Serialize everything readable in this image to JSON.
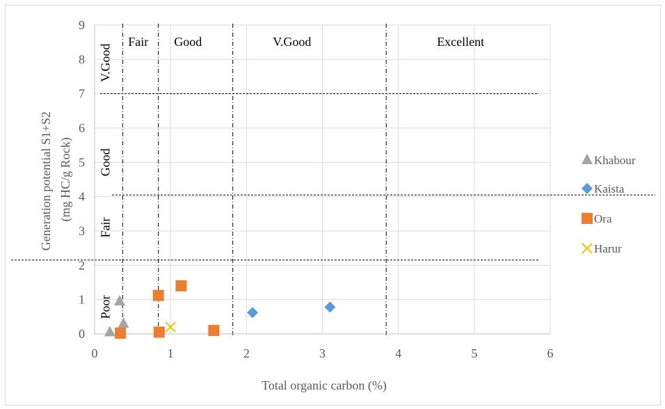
{
  "chart_data": {
    "type": "scatter",
    "xlabel": "Total organic carbon (%)",
    "ylabel_lines": [
      "Generation potential S1+S2",
      "(mg HC/g Rock)"
    ],
    "xlim": [
      0,
      6
    ],
    "ylim": [
      0,
      9
    ],
    "xticks": [
      "0",
      "1",
      "2",
      "3",
      "4",
      "5",
      "6"
    ],
    "yticks": [
      "0",
      "1",
      "2",
      "3",
      "4",
      "5",
      "6",
      "7",
      "8",
      "9"
    ],
    "grid": true,
    "legend_position": "right",
    "series": [
      {
        "name": "Khabour",
        "marker": "triangle",
        "color": "#a5a5a5",
        "points": [
          [
            0.2,
            0.05
          ],
          [
            0.33,
            0.95
          ],
          [
            0.38,
            0.3
          ]
        ]
      },
      {
        "name": "Kaista",
        "marker": "diamond",
        "color": "#5b9bd5",
        "points": [
          [
            2.08,
            0.62
          ],
          [
            3.1,
            0.78
          ]
        ]
      },
      {
        "name": "Ora",
        "marker": "square",
        "color": "#ed7d31",
        "points": [
          [
            0.34,
            0.02
          ],
          [
            0.84,
            1.12
          ],
          [
            0.85,
            0.05
          ],
          [
            1.14,
            1.4
          ],
          [
            1.57,
            0.1
          ]
        ]
      },
      {
        "name": "Harur",
        "marker": "x",
        "color": "#ffc000",
        "points": [
          [
            1.0,
            0.2
          ]
        ]
      }
    ],
    "boundaries": {
      "vertical_toc": [
        0.37,
        0.84,
        1.82,
        3.84
      ],
      "horizontal_s1s2": [
        2.15,
        4.05,
        7.0
      ]
    },
    "zone_labels_x": [
      "Fair",
      "Good",
      "V.Good",
      "Excellent"
    ],
    "zone_labels_y": [
      "Poor",
      "Fair",
      "Good",
      "V.Good"
    ]
  }
}
